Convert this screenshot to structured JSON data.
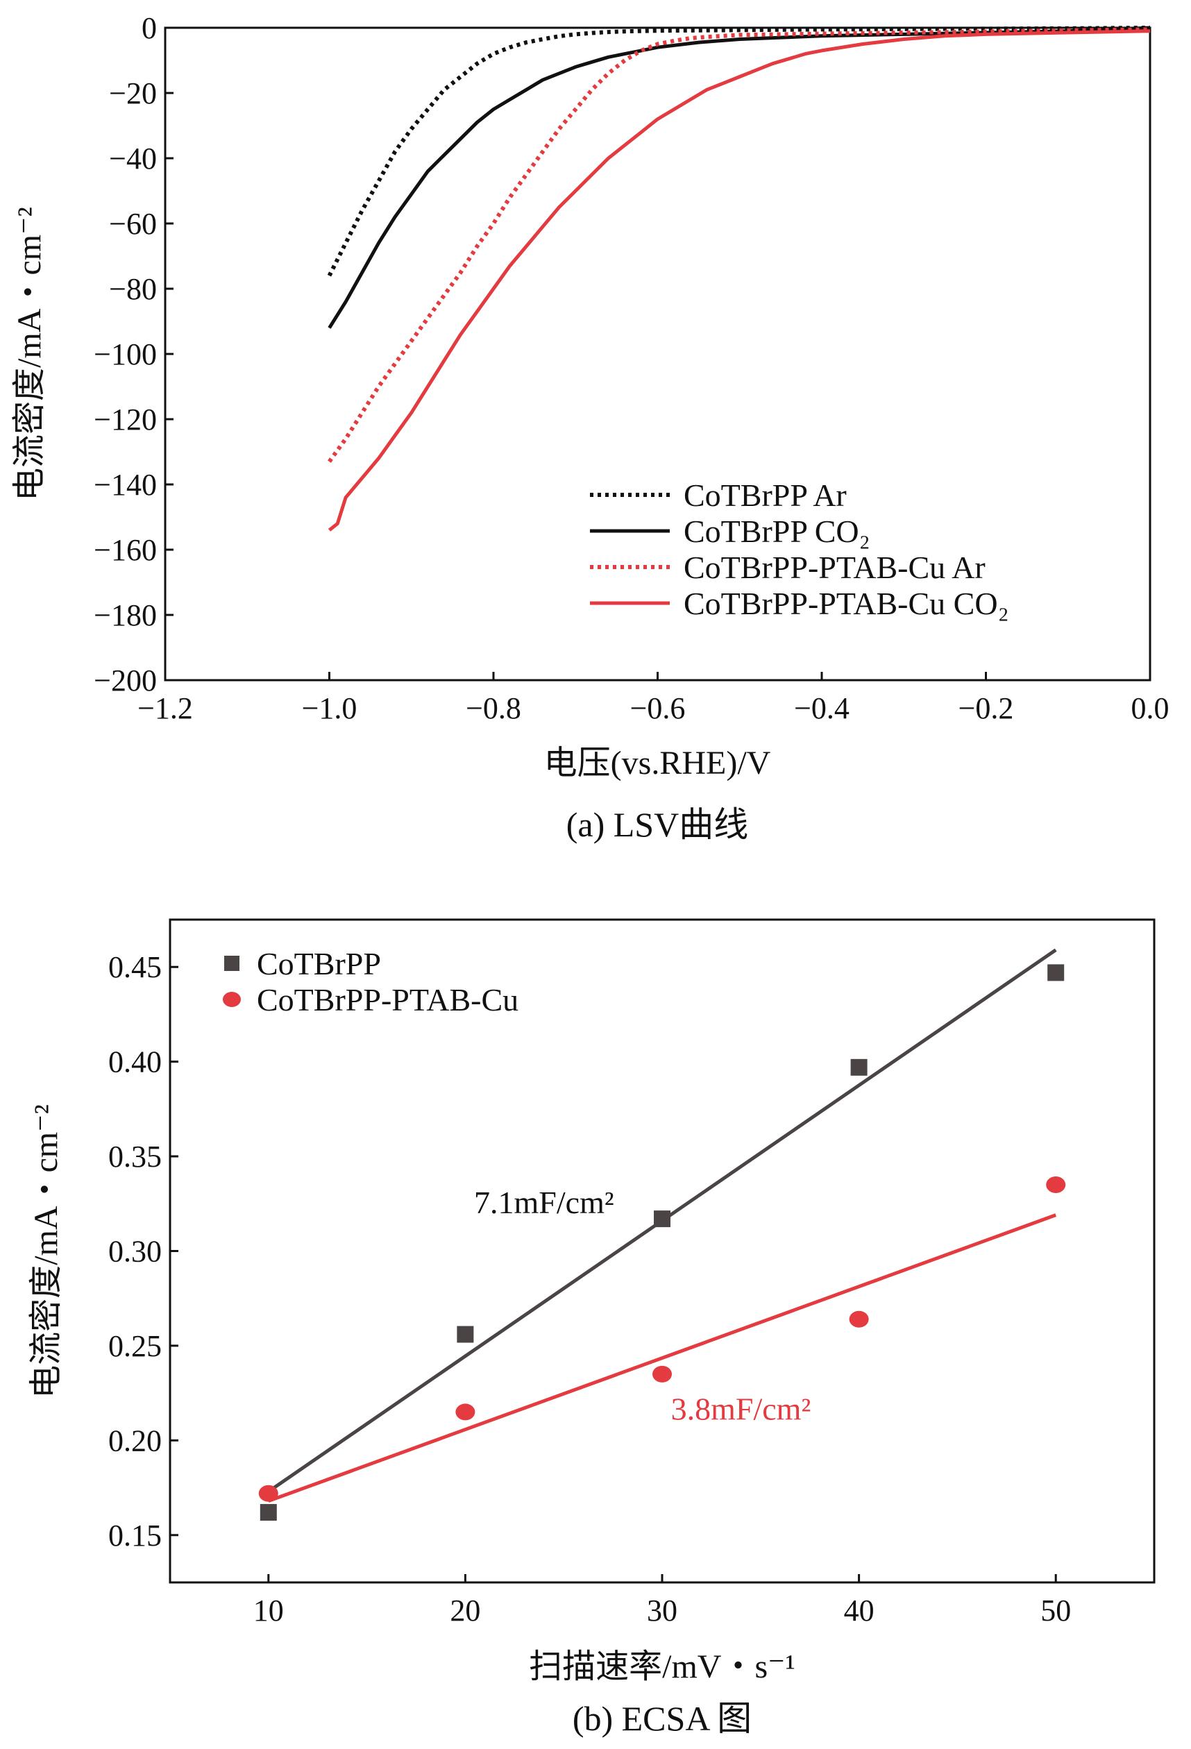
{
  "chart_data": [
    {
      "type": "line",
      "caption": "(a) LSV曲线",
      "xlabel": "电压(vs.RHE)/V",
      "ylabel": "电流密度/mA・cm⁻²",
      "xlim": [
        -1.2,
        0.0
      ],
      "ylim": [
        -200,
        0
      ],
      "xticks": [
        -1.2,
        -1.0,
        -0.8,
        -0.6,
        -0.4,
        -0.2,
        0.0
      ],
      "yticks": [
        0,
        -20,
        -40,
        -60,
        -80,
        -100,
        -120,
        -140,
        -160,
        -180,
        -200
      ],
      "xtick_labels": [
        "−1.2",
        "−1.0",
        "−0.8",
        "−0.6",
        "−0.4",
        "−0.2",
        "0.0"
      ],
      "ytick_labels": [
        "0",
        "−20",
        "−40",
        "−60",
        "−80",
        "−100",
        "−120",
        "−140",
        "−160",
        "−180",
        "−200"
      ],
      "grid": false,
      "legend_position": "bottom-right",
      "series": [
        {
          "name": "CoTBrPP Ar",
          "color": "#111111",
          "style": "dotted",
          "x": [
            -1.0,
            -0.98,
            -0.96,
            -0.94,
            -0.92,
            -0.9,
            -0.88,
            -0.86,
            -0.84,
            -0.82,
            -0.8,
            -0.78,
            -0.76,
            -0.74,
            -0.72,
            -0.7,
            -0.68,
            -0.66,
            -0.64,
            -0.62,
            -0.6,
            -0.5,
            -0.4,
            -0.3,
            -0.2,
            -0.1,
            0.0
          ],
          "y": [
            -76,
            -66,
            -56,
            -47,
            -38,
            -31,
            -25,
            -19,
            -15,
            -11,
            -8,
            -6,
            -4.5,
            -3.5,
            -2.6,
            -2,
            -1.6,
            -1.3,
            -1.1,
            -1,
            -0.9,
            -0.7,
            -0.5,
            -0.4,
            -0.3,
            -0.2,
            0
          ]
        },
        {
          "name": "CoTBrPP CO₂",
          "color": "#111111",
          "style": "solid",
          "x": [
            -1.0,
            -0.98,
            -0.96,
            -0.94,
            -0.92,
            -0.9,
            -0.88,
            -0.86,
            -0.84,
            -0.82,
            -0.8,
            -0.78,
            -0.76,
            -0.74,
            -0.72,
            -0.7,
            -0.68,
            -0.66,
            -0.64,
            -0.62,
            -0.6,
            -0.55,
            -0.5,
            -0.45,
            -0.4,
            -0.3,
            -0.2,
            -0.1,
            0.0
          ],
          "y": [
            -92,
            -84,
            -75,
            -66,
            -58,
            -51,
            -44,
            -39,
            -34,
            -29,
            -25,
            -22,
            -19,
            -16,
            -14,
            -12,
            -10.5,
            -9,
            -8,
            -7,
            -6,
            -4.5,
            -3.5,
            -3,
            -2.5,
            -2,
            -1.5,
            -1,
            0
          ]
        },
        {
          "name": "CoTBrPP-PTAB-Cu Ar",
          "color": "#e33b3f",
          "style": "dotted",
          "x": [
            -1.0,
            -0.98,
            -0.96,
            -0.94,
            -0.92,
            -0.9,
            -0.88,
            -0.86,
            -0.84,
            -0.82,
            -0.8,
            -0.78,
            -0.76,
            -0.74,
            -0.72,
            -0.7,
            -0.68,
            -0.66,
            -0.64,
            -0.62,
            -0.6,
            -0.58,
            -0.56,
            -0.54,
            -0.5,
            -0.4,
            -0.3,
            -0.2,
            -0.1,
            0.0
          ],
          "y": [
            -133,
            -126,
            -118,
            -110,
            -103,
            -96,
            -89,
            -82,
            -75,
            -67,
            -60,
            -52,
            -45,
            -38,
            -31,
            -25,
            -19,
            -14,
            -10,
            -7,
            -5,
            -4,
            -3.2,
            -2.8,
            -2.2,
            -1.8,
            -1.5,
            -1.2,
            -0.8,
            -0.5
          ]
        },
        {
          "name": "CoTBrPP-PTAB-Cu CO₂",
          "color": "#e33b3f",
          "style": "solid",
          "x": [
            -1.0,
            -0.99,
            -0.98,
            -0.96,
            -0.94,
            -0.92,
            -0.9,
            -0.88,
            -0.86,
            -0.84,
            -0.82,
            -0.8,
            -0.78,
            -0.76,
            -0.74,
            -0.72,
            -0.7,
            -0.68,
            -0.66,
            -0.64,
            -0.62,
            -0.6,
            -0.58,
            -0.56,
            -0.54,
            -0.52,
            -0.5,
            -0.48,
            -0.46,
            -0.44,
            -0.42,
            -0.4,
            -0.35,
            -0.3,
            -0.25,
            -0.2,
            -0.1,
            0.0
          ],
          "y": [
            -154,
            -152,
            -144,
            -138,
            -132,
            -125,
            -118,
            -110,
            -102,
            -94,
            -87,
            -80,
            -73,
            -67,
            -61,
            -55,
            -50,
            -45,
            -40,
            -36,
            -32,
            -28,
            -25,
            -22,
            -19,
            -17,
            -15,
            -13,
            -11,
            -9.5,
            -8,
            -7,
            -5,
            -3.5,
            -2.5,
            -2,
            -1.5,
            -1
          ]
        }
      ]
    },
    {
      "type": "scatter",
      "caption": "(b) ECSA 图",
      "xlabel": "扫描速率/mV・s⁻¹",
      "ylabel": "电流密度/mA・cm⁻²",
      "xlim": [
        5,
        55
      ],
      "ylim": [
        0.125,
        0.475
      ],
      "xticks": [
        10,
        20,
        30,
        40,
        50
      ],
      "yticks": [
        0.15,
        0.2,
        0.25,
        0.3,
        0.35,
        0.4,
        0.45
      ],
      "xtick_labels": [
        "10",
        "20",
        "30",
        "40",
        "50"
      ],
      "ytick_labels": [
        "0.15",
        "0.20",
        "0.25",
        "0.30",
        "0.35",
        "0.40",
        "0.45"
      ],
      "grid": false,
      "legend_position": "top-left",
      "series": [
        {
          "name": "CoTBrPP",
          "color": "#4a4444",
          "marker": "square",
          "x": [
            10,
            20,
            30,
            40,
            50
          ],
          "y": [
            0.162,
            0.256,
            0.317,
            0.397,
            0.447
          ],
          "fit": {
            "x": [
              10,
              50
            ],
            "y": [
              0.173,
              0.459
            ]
          },
          "annotation": {
            "text": "7.1mF/cm²",
            "at_x": 24,
            "at_y": 0.32
          }
        },
        {
          "name": "CoTBrPP-PTAB-Cu",
          "color": "#e33b3f",
          "marker": "circle",
          "x": [
            10,
            20,
            30,
            40,
            50
          ],
          "y": [
            0.172,
            0.215,
            0.235,
            0.264,
            0.335
          ],
          "fit": {
            "x": [
              10,
              50
            ],
            "y": [
              0.168,
              0.319
            ]
          },
          "annotation": {
            "text": "3.8mF/cm²",
            "at_x": 34,
            "at_y": 0.211
          }
        }
      ]
    }
  ]
}
